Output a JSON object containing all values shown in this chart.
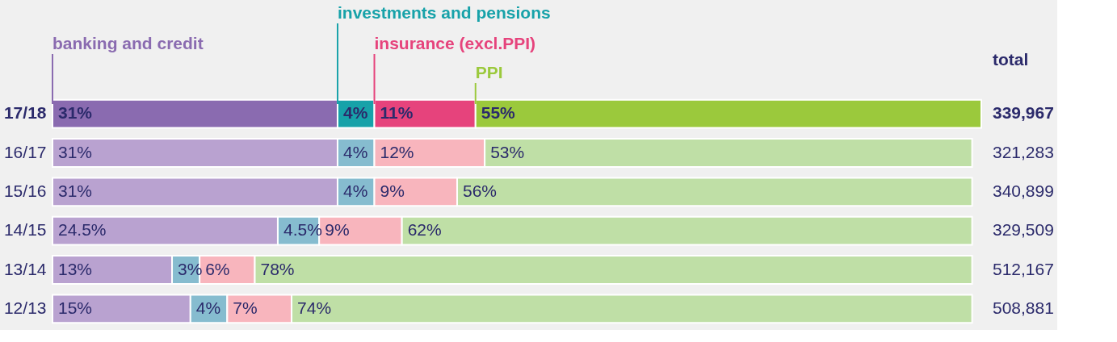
{
  "chart_data": {
    "type": "bar",
    "orientation": "horizontal",
    "stacked": true,
    "categories": [
      "17/18",
      "16/17",
      "15/16",
      "14/15",
      "13/14",
      "12/13"
    ],
    "series": [
      {
        "name": "banking and credit",
        "colors": [
          "#8a6bb0",
          "#b9a2d0",
          "#b9a2d0",
          "#b9a2d0",
          "#b9a2d0",
          "#b9a2d0"
        ],
        "values": [
          31,
          31,
          31,
          24.5,
          13,
          15
        ],
        "value_labels": [
          "31%",
          "31%",
          "31%",
          "24.5%",
          "13%",
          "15%"
        ]
      },
      {
        "name": "investments and pensions",
        "colors": [
          "#17a2a9",
          "#86bccf",
          "#86bccf",
          "#86bccf",
          "#86bccf",
          "#86bccf"
        ],
        "values": [
          4,
          4,
          4,
          4.5,
          3,
          4
        ],
        "value_labels": [
          "4%",
          "4%",
          "4%",
          "4.5%",
          "3%",
          "4%"
        ]
      },
      {
        "name": "insurance (excl.PPI)",
        "colors": [
          "#e6437c",
          "#f8b5bd",
          "#f8b5bd",
          "#f8b5bd",
          "#f8b5bd",
          "#f8b5bd"
        ],
        "values": [
          11,
          12,
          9,
          9,
          6,
          7
        ],
        "value_labels": [
          "11%",
          "12%",
          "9%",
          "9%",
          "6%",
          "7%"
        ]
      },
      {
        "name": "PPI",
        "colors": [
          "#9bc93c",
          "#bfdfa6",
          "#bfdfa6",
          "#bfdfa6",
          "#bfdfa6",
          "#bfdfa6"
        ],
        "values": [
          55,
          53,
          56,
          62,
          78,
          74
        ],
        "value_labels": [
          "55%",
          "53%",
          "56%",
          "62%",
          "78%",
          "74%"
        ]
      }
    ],
    "annotations": [
      "total",
      "339,967",
      "321,283",
      "340,899",
      "329,509",
      "512,167",
      "508,881"
    ]
  }
}
